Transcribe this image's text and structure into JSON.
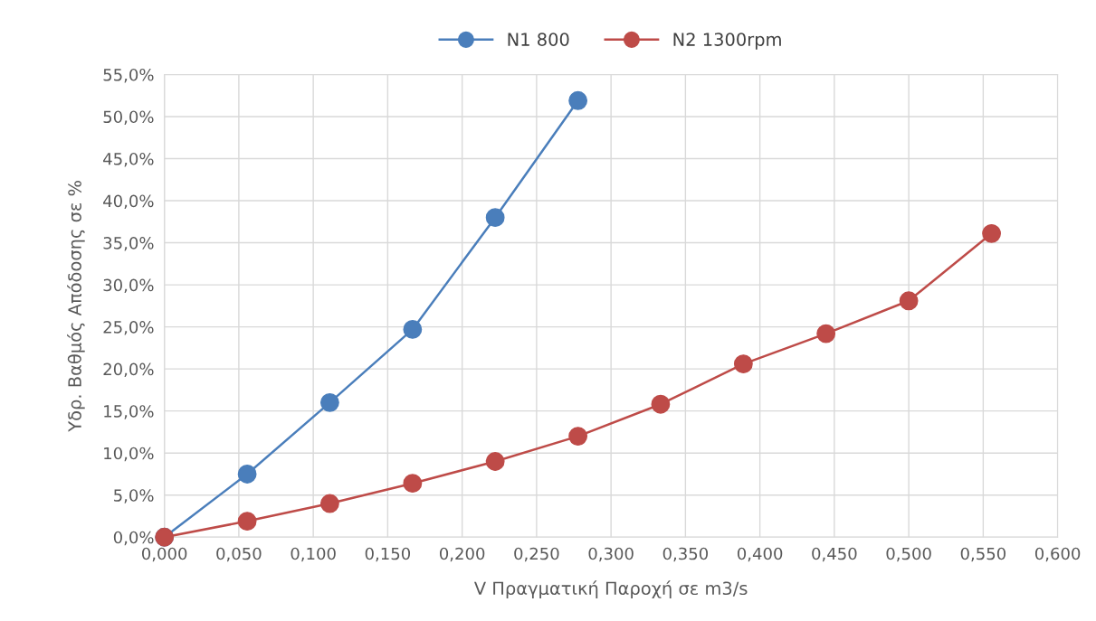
{
  "chart_data": {
    "type": "line",
    "xlabel": "V Πραγματική Παροχή σε m3/s",
    "ylabel": "Υδρ. Βαθμός Απόδοσης σε %",
    "series": [
      {
        "name": "N1 800",
        "color": "#4a7ebb",
        "x": [
          0,
          0.0556,
          0.1111,
          0.1667,
          0.2222,
          0.2778
        ],
        "values": [
          0,
          7.5,
          16.0,
          24.7,
          38.0,
          51.9
        ]
      },
      {
        "name": "N2 1300rpm",
        "color": "#be4b48",
        "x": [
          0,
          0.0556,
          0.1111,
          0.1667,
          0.2222,
          0.2778,
          0.3333,
          0.3889,
          0.4444,
          0.5,
          0.5556
        ],
        "values": [
          0,
          1.9,
          4.0,
          6.4,
          9.0,
          12.0,
          15.8,
          20.6,
          24.2,
          28.1,
          36.1
        ]
      }
    ],
    "xlim": [
      0,
      0.6
    ],
    "xticks": [
      {
        "value": 0,
        "label": "0,000"
      },
      {
        "value": 0.05,
        "label": "0,050"
      },
      {
        "value": 0.1,
        "label": "0,100"
      },
      {
        "value": 0.15,
        "label": "0,150"
      },
      {
        "value": 0.2,
        "label": "0,200"
      },
      {
        "value": 0.25,
        "label": "0,250"
      },
      {
        "value": 0.3,
        "label": "0,300"
      },
      {
        "value": 0.35,
        "label": "0,350"
      },
      {
        "value": 0.4,
        "label": "0,400"
      },
      {
        "value": 0.45,
        "label": "0,450"
      },
      {
        "value": 0.5,
        "label": "0,500"
      },
      {
        "value": 0.55,
        "label": "0,550"
      },
      {
        "value": 0.6,
        "label": "0,600"
      }
    ],
    "ylim": [
      0,
      55
    ],
    "yticks": [
      {
        "value": 0,
        "label": "0,0%"
      },
      {
        "value": 5,
        "label": "5,0%"
      },
      {
        "value": 10,
        "label": "10,0%"
      },
      {
        "value": 15,
        "label": "15,0%"
      },
      {
        "value": 20,
        "label": "20,0%"
      },
      {
        "value": 25,
        "label": "25,0%"
      },
      {
        "value": 30,
        "label": "30,0%"
      },
      {
        "value": 35,
        "label": "35,0%"
      },
      {
        "value": 40,
        "label": "40,0%"
      },
      {
        "value": 45,
        "label": "45,0%"
      },
      {
        "value": 50,
        "label": "50,0%"
      },
      {
        "value": 55,
        "label": "55,0%"
      }
    ],
    "grid": true,
    "legend": "top",
    "marker": "circle",
    "line_style": "solid"
  }
}
